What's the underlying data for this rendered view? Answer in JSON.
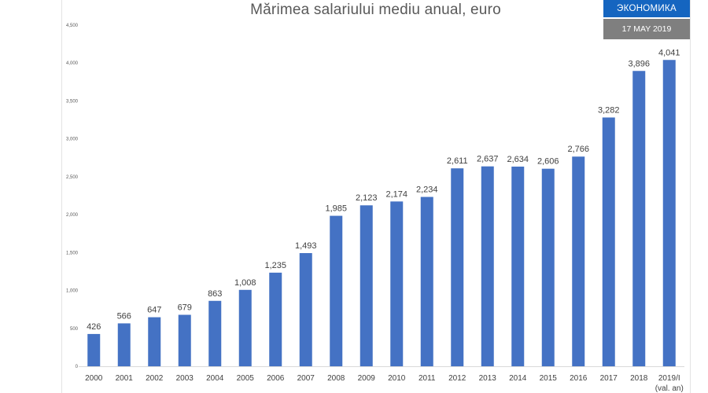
{
  "header": {
    "badge_section": "ЭКОНОМИКА",
    "badge_date": "17 MAY 2019"
  },
  "colors": {
    "bar": "#4472c4",
    "badge_blue": "#1565c0",
    "badge_gray": "#7f7f7f"
  },
  "chart_data": {
    "type": "bar",
    "title": "Mărimea salariului mediu anual, euro",
    "xlabel": "",
    "ylabel": "",
    "ylim": [
      0,
      4500
    ],
    "yticks": [
      {
        "value": 0,
        "label": "0"
      },
      {
        "value": 500,
        "label": "500"
      },
      {
        "value": 1000,
        "label": "1,000"
      },
      {
        "value": 1500,
        "label": "1,500"
      },
      {
        "value": 2000,
        "label": "2,000"
      },
      {
        "value": 2500,
        "label": "2,500"
      },
      {
        "value": 3000,
        "label": "3,000"
      },
      {
        "value": 3500,
        "label": "3,500"
      },
      {
        "value": 4000,
        "label": "4,000"
      },
      {
        "value": 4500,
        "label": "4,500"
      }
    ],
    "grid": false,
    "categories": [
      "2000",
      "2001",
      "2002",
      "2003",
      "2004",
      "2005",
      "2006",
      "2007",
      "2008",
      "2009",
      "2010",
      "2011",
      "2012",
      "2013",
      "2014",
      "2015",
      "2016",
      "2017",
      "2018",
      "2019/I"
    ],
    "category_sublabels": [
      "",
      "",
      "",
      "",
      "",
      "",
      "",
      "",
      "",
      "",
      "",
      "",
      "",
      "",
      "",
      "",
      "",
      "",
      "",
      "(val. an)"
    ],
    "values": [
      426,
      566,
      647,
      679,
      863,
      1008,
      1235,
      1493,
      1985,
      2123,
      2174,
      2234,
      2611,
      2637,
      2634,
      2606,
      2766,
      3282,
      3896,
      4041
    ],
    "value_labels": [
      "426",
      "566",
      "647",
      "679",
      "863",
      "1,008",
      "1,235",
      "1,493",
      "1,985",
      "2,123",
      "2,174",
      "2,234",
      "2,611",
      "2,637",
      "2,634",
      "2,606",
      "2,766",
      "3,282",
      "3,896",
      "4,041"
    ]
  }
}
